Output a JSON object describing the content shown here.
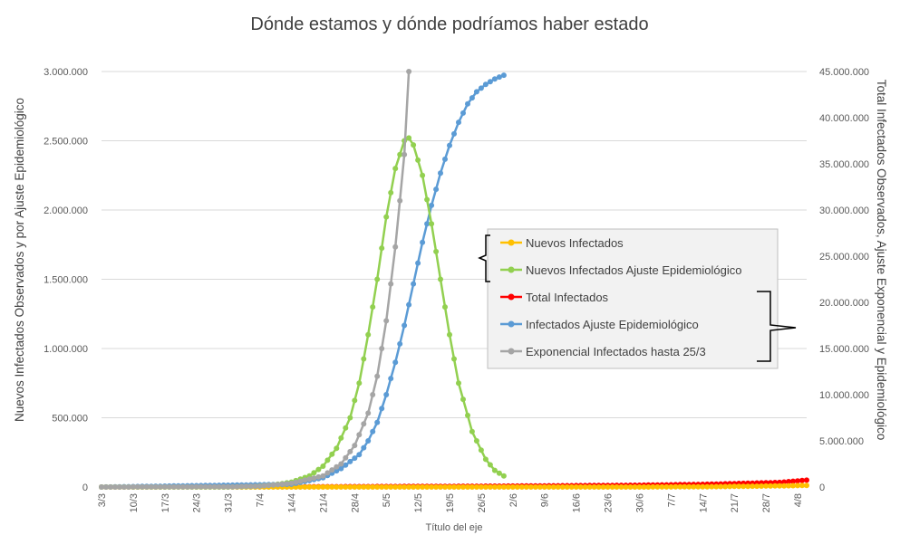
{
  "chart_data": {
    "type": "line",
    "title": "Dónde estamos y dónde podríamos haber estado",
    "xlabel": "Título del eje",
    "ylabel_left": "Nuevos Infectados Observados y por Ajuste Epidemiológico",
    "ylabel_right": "Total Infectados Observados, Ajuste Exponencial y Epidemiológico",
    "ylim_left": [
      0,
      3000000
    ],
    "ylim_right": [
      0,
      45000000
    ],
    "yticks_left": [
      "0",
      "500.000",
      "1.000.000",
      "1.500.000",
      "2.000.000",
      "2.500.000",
      "3.000.000"
    ],
    "yticks_right": [
      "0",
      "5.000.000",
      "10.000.000",
      "15.000.000",
      "20.000.000",
      "25.000.000",
      "30.000.000",
      "35.000.000",
      "40.000.000",
      "45.000.000"
    ],
    "x_start": "3/3",
    "x_end": "6/8",
    "x_ticks": [
      "3/3",
      "10/3",
      "17/3",
      "24/3",
      "31/3",
      "7/4",
      "14/4",
      "21/4",
      "28/4",
      "5/5",
      "12/5",
      "19/5",
      "26/5",
      "2/6",
      "9/6",
      "16/6",
      "23/6",
      "30/6",
      "7/7",
      "14/7",
      "21/7",
      "28/7",
      "4/8"
    ],
    "grid": "horizontal",
    "legend_position": "center-right",
    "series": [
      {
        "name": "Nuevos Infectados",
        "axis": "left",
        "color": "#FFC000",
        "x": [
          "3/3",
          "31/3",
          "30/4",
          "31/5",
          "30/6",
          "15/7",
          "31/7",
          "6/8"
        ],
        "values": [
          0,
          0,
          0,
          0,
          0,
          2000,
          8000,
          12000
        ]
      },
      {
        "name": "Nuevos Infectados Ajuste Epidemiológico",
        "axis": "left",
        "color": "#92D050",
        "x": [
          "3/3",
          "31/3",
          "6/4",
          "10/4",
          "14/4",
          "18/4",
          "21/4",
          "24/4",
          "27/4",
          "29/4",
          "1/5",
          "3/5",
          "5/5",
          "7/5",
          "9/5",
          "10/5",
          "11/5",
          "13/5",
          "15/5",
          "17/5",
          "19/5",
          "21/5",
          "24/5",
          "27/5",
          "29/5",
          "31/5"
        ],
        "values": [
          0,
          0,
          5000,
          15000,
          35000,
          80000,
          150000,
          280000,
          500000,
          750000,
          1100000,
          1500000,
          1950000,
          2300000,
          2500000,
          2520000,
          2470000,
          2250000,
          1900000,
          1500000,
          1100000,
          750000,
          400000,
          200000,
          120000,
          80000
        ]
      },
      {
        "name": "Total Infectados",
        "axis": "right",
        "color": "#FF0000",
        "x": [
          "3/3",
          "31/3",
          "30/4",
          "31/5",
          "30/6",
          "15/7",
          "31/7",
          "6/8"
        ],
        "values": [
          0,
          10000,
          50000,
          100000,
          200000,
          300000,
          500000,
          750000
        ]
      },
      {
        "name": "Infectados Ajuste Epidemiológico",
        "axis": "right",
        "color": "#5B9BD5",
        "x": [
          "3/3",
          "14/4",
          "21/4",
          "25/4",
          "29/4",
          "1/5",
          "3/5",
          "5/5",
          "7/5",
          "9/5",
          "11/5",
          "13/5",
          "15/5",
          "17/5",
          "19/5",
          "21/5",
          "23/5",
          "25/5",
          "27/5",
          "29/5",
          "31/5"
        ],
        "values": [
          0,
          300000,
          1000000,
          2000000,
          3500000,
          5000000,
          7000000,
          10000000,
          13500000,
          17500000,
          22000000,
          26500000,
          30500000,
          34000000,
          37000000,
          39500000,
          41500000,
          42800000,
          43600000,
          44200000,
          44600000
        ]
      },
      {
        "name": "Exponencial Infectados hasta 25/3",
        "axis": "right",
        "color": "#A5A5A5",
        "x": [
          "3/3",
          "31/3",
          "7/4",
          "14/4",
          "21/4",
          "25/4",
          "28/4",
          "1/5",
          "3/5",
          "5/5",
          "7/5",
          "9/5",
          "10/5"
        ],
        "values": [
          0,
          20000,
          100000,
          400000,
          1200000,
          2500000,
          4500000,
          8000000,
          12000000,
          18000000,
          26000000,
          36000000,
          45000000
        ]
      }
    ]
  }
}
